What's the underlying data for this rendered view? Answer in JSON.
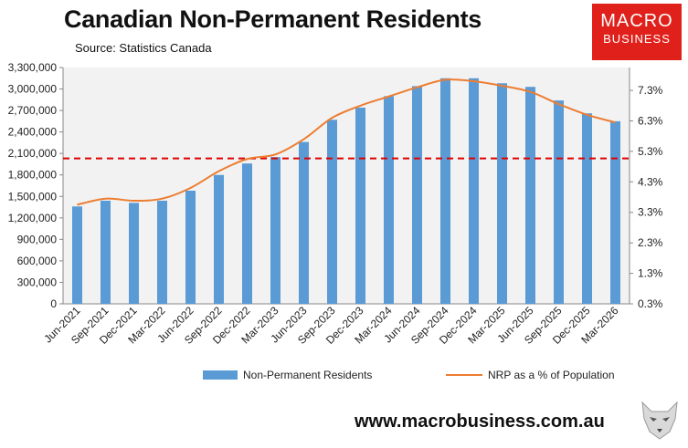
{
  "header": {
    "title": "Canadian Non-Permanent Residents",
    "source": "Source: Statistics Canada"
  },
  "logo": {
    "line1": "MACRO",
    "line2": "BUSINESS"
  },
  "footer": {
    "url": "www.macrobusiness.com.au"
  },
  "colors": {
    "bar": "#5b9bd5",
    "line": "#ed7d31",
    "reference": "#e00000",
    "plot_bg": "#f2f2f2",
    "logo_bg": "#e0201b"
  },
  "chart_data": {
    "type": "bar",
    "title": "Canadian Non-Permanent Residents",
    "categories": [
      "Jun-2021",
      "Sep-2021",
      "Dec-2021",
      "Mar-2022",
      "Jun-2022",
      "Sep-2022",
      "Dec-2022",
      "Mar-2023",
      "Jun-2023",
      "Sep-2023",
      "Dec-2023",
      "Mar-2024",
      "Jun-2024",
      "Sep-2024",
      "Dec-2024",
      "Mar-2025",
      "Jun-2025",
      "Sep-2025",
      "Dec-2025",
      "Mar-2026"
    ],
    "series": [
      {
        "name": "Non-Permanent Residents",
        "type": "bar",
        "axis": "left",
        "values": [
          1360000,
          1440000,
          1410000,
          1440000,
          1580000,
          1800000,
          1960000,
          2050000,
          2260000,
          2570000,
          2740000,
          2900000,
          3040000,
          3150000,
          3150000,
          3080000,
          3030000,
          2840000,
          2660000,
          2550000
        ]
      },
      {
        "name": "NRP as a % of Population",
        "type": "line",
        "axis": "right",
        "values": [
          3.55,
          3.75,
          3.68,
          3.75,
          4.1,
          4.65,
          5.05,
          5.2,
          5.7,
          6.4,
          6.8,
          7.1,
          7.4,
          7.65,
          7.6,
          7.45,
          7.25,
          6.85,
          6.5,
          6.25
        ]
      }
    ],
    "reference_line": {
      "axis": "left",
      "value": 2030000,
      "style": "dashed"
    },
    "y_left": {
      "ylim": [
        0,
        3300000
      ],
      "ticks": [
        "0",
        "300,000",
        "600,000",
        "900,000",
        "1,200,000",
        "1,500,000",
        "1,800,000",
        "2,100,000",
        "2,400,000",
        "2,700,000",
        "3,000,000",
        "3,300,000"
      ]
    },
    "y_right": {
      "ylim": [
        0.3,
        8.05
      ],
      "ticks": [
        "0.3%",
        "1.3%",
        "2.3%",
        "3.3%",
        "4.3%",
        "5.3%",
        "6.3%",
        "7.3%"
      ]
    },
    "legend": {
      "position": "bottom"
    },
    "grid": false
  }
}
